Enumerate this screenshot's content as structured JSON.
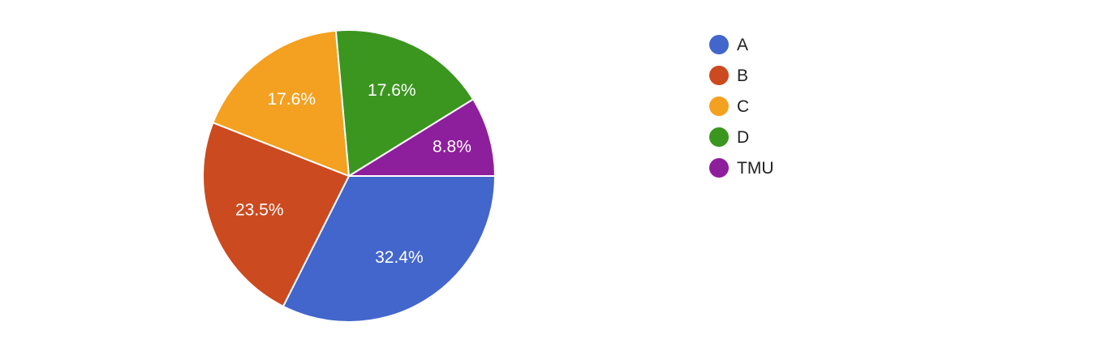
{
  "chart_data": {
    "type": "pie",
    "start_angle_deg": 90,
    "direction": "clockwise",
    "legend_position": "right",
    "slices": [
      {
        "name": "A",
        "value": 32.4,
        "label": "32.4%",
        "color": "#4366cc"
      },
      {
        "name": "B",
        "value": 23.5,
        "label": "23.5%",
        "color": "#cc4a1f"
      },
      {
        "name": "C",
        "value": 17.6,
        "label": "17.6%",
        "color": "#f4a020"
      },
      {
        "name": "D",
        "value": 17.6,
        "label": "17.6%",
        "color": "#3b961f"
      },
      {
        "name": "TMU",
        "value": 8.8,
        "label": "8.8%",
        "color": "#8e1f9c"
      }
    ]
  }
}
